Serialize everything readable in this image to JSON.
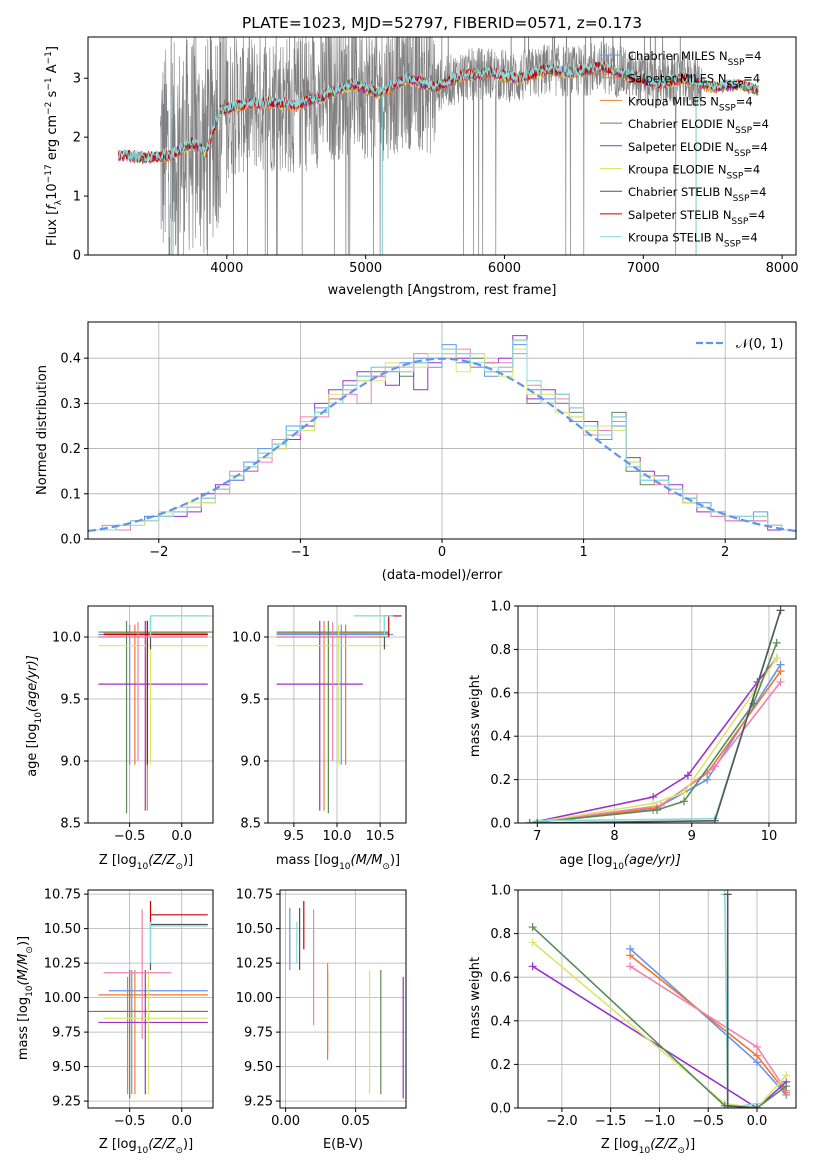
{
  "colors": {
    "s0": "#6495ed",
    "s1": "#ee7733",
    "s2": "#f08030",
    "s3": "#5a8a5a",
    "s4": "#9932cc",
    "s5": "#d8e86a",
    "s6": "#555555",
    "s7": "#cc0000",
    "s8": "#88dddd",
    "s9": "#f080b0",
    "grid": "#b0b0b0",
    "gray_spectrum": "#808080",
    "model": "#77cccc",
    "normal_curve": "#6495ed"
  },
  "chart_data": [
    {
      "id": "spectrum",
      "type": "line",
      "title": "PLATE=1023, MJD=52797, FIBERID=0571, z=0.173",
      "xlabel": "wavelength [Angstrom, rest frame]",
      "ylabel_main": "Flux [",
      "ylabel_sub": "f",
      "ylabel_tail": "10",
      "ylabel_exp": "−17",
      "ylabel_units": " erg cm",
      "xlim": [
        3000,
        8100
      ],
      "ylim": [
        0,
        3.7
      ],
      "xticks": [
        "4000",
        "5000",
        "6000",
        "7000",
        "8000"
      ],
      "yticks": [
        "0",
        "1",
        "2",
        "3"
      ],
      "grid": false,
      "legend_position": "upper-right",
      "legend": [
        {
          "name": "Chabrier MILES",
          "sub": "SSP",
          "tail": "=4"
        },
        {
          "name": "Salpeter MILES",
          "sub": "SSP",
          "tail": "=4"
        },
        {
          "name": "Kroupa MILES",
          "sub": "SSP",
          "tail": "=4"
        },
        {
          "name": "Chabrier ELODIE",
          "sub": "SSP",
          "tail": "=4"
        },
        {
          "name": "Salpeter ELODIE",
          "sub": "SSP",
          "tail": "=4"
        },
        {
          "name": "Kroupa ELODIE",
          "sub": "SSP",
          "tail": "=4"
        },
        {
          "name": "Chabrier STELIB",
          "sub": "SSP",
          "tail": "=4"
        },
        {
          "name": "Salpeter STELIB",
          "sub": "SSP",
          "tail": "=4"
        },
        {
          "name": "Kroupa STELIB",
          "sub": "SSP",
          "tail": "=4"
        }
      ],
      "model_continuum": {
        "x": [
          3220,
          3400,
          3600,
          3750,
          3850,
          3950,
          4100,
          4300,
          4500,
          4700,
          4900,
          5100,
          5300,
          5500,
          5700,
          5900,
          6100,
          6300,
          6500,
          6700,
          6900,
          7100,
          7300,
          7500,
          7700,
          7830
        ],
        "y": [
          1.7,
          1.65,
          1.7,
          1.9,
          1.75,
          2.45,
          2.55,
          2.6,
          2.55,
          2.7,
          2.9,
          2.75,
          3.0,
          2.85,
          3.05,
          3.1,
          3.0,
          3.15,
          3.1,
          3.2,
          3.05,
          2.9,
          3.0,
          2.85,
          2.9,
          2.8
        ]
      }
    },
    {
      "id": "residuals",
      "type": "step",
      "xlabel": "(data-model)/error",
      "ylabel": "Normed distribution",
      "xlim": [
        -2.5,
        2.5
      ],
      "ylim": [
        0,
        0.48
      ],
      "xticks": [
        "−2",
        "−1",
        "0",
        "1",
        "2"
      ],
      "yticks": [
        "0.0",
        "0.1",
        "0.2",
        "0.3",
        "0.4"
      ],
      "grid": true,
      "legend_position": "upper-right",
      "legend_label": "𝒩(0, 1)",
      "bin_edges": [
        -2.5,
        -2.4,
        -2.3,
        -2.2,
        -2.1,
        -2.0,
        -1.9,
        -1.8,
        -1.7,
        -1.6,
        -1.5,
        -1.4,
        -1.3,
        -1.2,
        -1.1,
        -1.0,
        -0.9,
        -0.8,
        -0.7,
        -0.6,
        -0.5,
        -0.4,
        -0.3,
        -0.2,
        -0.1,
        0.0,
        0.1,
        0.2,
        0.3,
        0.4,
        0.5,
        0.6,
        0.7,
        0.8,
        0.9,
        1.0,
        1.1,
        1.2,
        1.3,
        1.4,
        1.5,
        1.6,
        1.7,
        1.8,
        1.9,
        2.0,
        2.1,
        2.2,
        2.3,
        2.4,
        2.5
      ],
      "series": [
        {
          "color_key": "s3",
          "values": [
            0.02,
            0.02,
            0.03,
            0.04,
            0.04,
            0.05,
            0.06,
            0.07,
            0.09,
            0.11,
            0.14,
            0.16,
            0.19,
            0.21,
            0.24,
            0.26,
            0.28,
            0.31,
            0.33,
            0.36,
            0.37,
            0.38,
            0.36,
            0.39,
            0.4,
            0.42,
            0.41,
            0.4,
            0.37,
            0.38,
            0.44,
            0.3,
            0.3,
            0.32,
            0.28,
            0.25,
            0.23,
            0.28,
            0.15,
            0.12,
            0.13,
            0.11,
            0.09,
            0.07,
            0.06,
            0.05,
            0.04,
            0.05,
            0.03,
            0.02
          ]
        },
        {
          "color_key": "s4",
          "values": [
            0.02,
            0.02,
            0.02,
            0.04,
            0.05,
            0.05,
            0.05,
            0.06,
            0.1,
            0.12,
            0.13,
            0.15,
            0.18,
            0.2,
            0.22,
            0.25,
            0.3,
            0.33,
            0.35,
            0.37,
            0.36,
            0.34,
            0.38,
            0.33,
            0.39,
            0.41,
            0.4,
            0.38,
            0.39,
            0.4,
            0.45,
            0.31,
            0.33,
            0.3,
            0.29,
            0.26,
            0.25,
            0.27,
            0.18,
            0.15,
            0.14,
            0.12,
            0.08,
            0.06,
            0.06,
            0.04,
            0.05,
            0.04,
            0.02,
            0.02
          ]
        },
        {
          "color_key": "s0",
          "values": [
            0.02,
            0.02,
            0.03,
            0.03,
            0.05,
            0.06,
            0.06,
            0.07,
            0.08,
            0.11,
            0.13,
            0.17,
            0.2,
            0.21,
            0.25,
            0.24,
            0.29,
            0.3,
            0.34,
            0.35,
            0.38,
            0.37,
            0.39,
            0.4,
            0.38,
            0.43,
            0.39,
            0.41,
            0.36,
            0.37,
            0.43,
            0.33,
            0.31,
            0.3,
            0.26,
            0.25,
            0.22,
            0.25,
            0.17,
            0.13,
            0.14,
            0.1,
            0.09,
            0.08,
            0.05,
            0.05,
            0.04,
            0.06,
            0.03,
            0.02
          ]
        },
        {
          "color_key": "s9",
          "values": [
            0.02,
            0.03,
            0.02,
            0.04,
            0.04,
            0.05,
            0.07,
            0.07,
            0.09,
            0.1,
            0.15,
            0.15,
            0.17,
            0.22,
            0.23,
            0.27,
            0.27,
            0.31,
            0.32,
            0.3,
            0.36,
            0.38,
            0.37,
            0.41,
            0.4,
            0.4,
            0.42,
            0.38,
            0.39,
            0.39,
            0.41,
            0.34,
            0.3,
            0.31,
            0.27,
            0.23,
            0.24,
            0.26,
            0.16,
            0.14,
            0.12,
            0.1,
            0.1,
            0.07,
            0.05,
            0.04,
            0.05,
            0.04,
            0.03,
            0.02
          ]
        },
        {
          "color_key": "s5",
          "values": [
            0.02,
            0.02,
            0.03,
            0.03,
            0.04,
            0.06,
            0.07,
            0.08,
            0.08,
            0.11,
            0.14,
            0.16,
            0.18,
            0.2,
            0.24,
            0.24,
            0.28,
            0.32,
            0.33,
            0.35,
            0.35,
            0.39,
            0.38,
            0.38,
            0.41,
            0.41,
            0.37,
            0.41,
            0.38,
            0.36,
            0.42,
            0.32,
            0.32,
            0.28,
            0.27,
            0.24,
            0.25,
            0.24,
            0.17,
            0.14,
            0.13,
            0.11,
            0.08,
            0.07,
            0.06,
            0.05,
            0.05,
            0.05,
            0.03,
            0.02
          ]
        },
        {
          "color_key": "s8",
          "values": [
            0.02,
            0.02,
            0.03,
            0.04,
            0.04,
            0.05,
            0.06,
            0.07,
            0.09,
            0.11,
            0.14,
            0.16,
            0.19,
            0.21,
            0.24,
            0.26,
            0.28,
            0.3,
            0.33,
            0.36,
            0.38,
            0.38,
            0.37,
            0.39,
            0.4,
            0.42,
            0.41,
            0.39,
            0.37,
            0.38,
            0.44,
            0.35,
            0.3,
            0.32,
            0.29,
            0.25,
            0.23,
            0.27,
            0.16,
            0.13,
            0.13,
            0.11,
            0.09,
            0.07,
            0.06,
            0.05,
            0.05,
            0.05,
            0.03,
            0.02
          ]
        }
      ]
    },
    {
      "id": "age_vs_Z",
      "type": "errorbar",
      "xlabel": "Z [log",
      "xlabel_sub": "10",
      "xlabel_tail": "(Z/Z",
      "xlabel_end": ")]",
      "ylabel": "age  [log",
      "ylabel_sub": "10",
      "ylabel_tail": "(age/yr)]",
      "xlim": [
        -0.9,
        0.3
      ],
      "ylim": [
        8.5,
        10.25
      ],
      "xticks": [
        "−0.5",
        "0.0"
      ],
      "yticks": [
        "8.5",
        "9.0",
        "9.5",
        "10.0"
      ],
      "grid": true
    },
    {
      "id": "age_vs_mass",
      "type": "errorbar",
      "xlabel": "mass [log",
      "xlabel_sub": "10",
      "xlabel_tail": "(M/M",
      "xlabel_end": ")]",
      "xlim": [
        9.2,
        10.8
      ],
      "ylim": [
        8.5,
        10.25
      ],
      "xticks": [
        "9.5",
        "10.0",
        "10.5"
      ],
      "yticks": [
        "8.5",
        "9.0",
        "9.5",
        "10.0"
      ],
      "grid": true
    },
    {
      "id": "massweight_vs_age",
      "type": "line",
      "xlabel": "age  [log",
      "xlabel_sub": "10",
      "xlabel_tail": "(age/yr)]",
      "ylabel": "mass weight",
      "xlim": [
        6.75,
        10.35
      ],
      "ylim": [
        0,
        1.0
      ],
      "xticks": [
        "7",
        "8",
        "9",
        "10"
      ],
      "yticks": [
        "0.0",
        "0.2",
        "0.4",
        "0.6",
        "0.8",
        "1.0"
      ],
      "grid": true,
      "series": [
        {
          "color_key": "s0",
          "x": [
            6.9,
            8.5,
            9.2,
            10.15
          ],
          "y": [
            0.0,
            0.06,
            0.2,
            0.73
          ]
        },
        {
          "color_key": "s1",
          "x": [
            6.9,
            8.55,
            9.2,
            10.15
          ],
          "y": [
            0.0,
            0.07,
            0.23,
            0.7
          ]
        },
        {
          "color_key": "s9",
          "x": [
            6.9,
            8.6,
            9.3,
            10.15
          ],
          "y": [
            0.0,
            0.08,
            0.26,
            0.65
          ]
        },
        {
          "color_key": "s4",
          "x": [
            6.9,
            8.5,
            8.95,
            9.85,
            10.1
          ],
          "y": [
            0.0,
            0.12,
            0.22,
            0.65,
            0.76
          ]
        },
        {
          "color_key": "s5",
          "x": [
            6.9,
            8.5,
            8.9,
            9.8,
            10.1
          ],
          "y": [
            0.0,
            0.09,
            0.14,
            0.6,
            0.76
          ]
        },
        {
          "color_key": "s3",
          "x": [
            6.9,
            8.55,
            8.9,
            9.8,
            10.1
          ],
          "y": [
            0.0,
            0.06,
            0.1,
            0.55,
            0.83
          ]
        },
        {
          "color_key": "s8",
          "x": [
            7.0,
            9.3,
            10.15
          ],
          "y": [
            0.01,
            0.02,
            0.98
          ]
        },
        {
          "color_key": "s6",
          "x": [
            7.0,
            9.3,
            10.15
          ],
          "y": [
            0.0,
            0.01,
            0.98
          ]
        }
      ]
    },
    {
      "id": "mass_vs_Z",
      "type": "errorbar",
      "xlabel": "Z [log",
      "xlabel_sub": "10",
      "xlabel_tail": "(Z/Z",
      "xlabel_end": ")]",
      "ylabel": "mass [log",
      "ylabel_sub": "10",
      "ylabel_tail": "(M/M",
      "ylabel_end": ")]",
      "xlim": [
        -0.9,
        0.3
      ],
      "ylim": [
        9.2,
        10.78
      ],
      "xticks": [
        "−0.5",
        "0.0"
      ],
      "yticks": [
        "9.25",
        "9.50",
        "9.75",
        "10.00",
        "10.25",
        "10.50",
        "10.75"
      ],
      "grid": true
    },
    {
      "id": "mass_vs_EBV",
      "type": "errorbar",
      "xlabel": "E(B-V)",
      "xlim": [
        -0.004,
        0.086
      ],
      "ylim": [
        9.2,
        10.78
      ],
      "xticks": [
        "0.00",
        "0.05"
      ],
      "yticks": [
        "9.25",
        "9.50",
        "9.75",
        "10.00",
        "10.25",
        "10.50",
        "10.75"
      ],
      "grid": true
    },
    {
      "id": "massweight_vs_Z",
      "type": "line",
      "xlabel": "Z [log",
      "xlabel_sub": "10",
      "xlabel_tail": "(Z/Z",
      "xlabel_end": ")]",
      "ylabel": "mass weight",
      "xlim": [
        -2.45,
        0.4
      ],
      "ylim": [
        0,
        1.0
      ],
      "xticks": [
        "−2.0",
        "−1.5",
        "−1.0",
        "−0.5",
        "0.0"
      ],
      "yticks": [
        "0.0",
        "0.2",
        "0.4",
        "0.6",
        "0.8",
        "1.0"
      ],
      "grid": true,
      "series": [
        {
          "color_key": "s0",
          "x": [
            -1.3,
            0.0,
            0.3
          ],
          "y": [
            0.73,
            0.21,
            0.06
          ]
        },
        {
          "color_key": "s1",
          "x": [
            -1.3,
            0.0,
            0.3
          ],
          "y": [
            0.7,
            0.24,
            0.07
          ]
        },
        {
          "color_key": "s9",
          "x": [
            -1.3,
            0.0,
            0.3
          ],
          "y": [
            0.65,
            0.28,
            0.08
          ]
        },
        {
          "color_key": "s4",
          "x": [
            -2.3,
            0.0,
            0.3
          ],
          "y": [
            0.65,
            0.0,
            0.12
          ]
        },
        {
          "color_key": "s5",
          "x": [
            -2.3,
            -0.33,
            0.0,
            0.3
          ],
          "y": [
            0.76,
            0.02,
            0.0,
            0.15
          ]
        },
        {
          "color_key": "s3",
          "x": [
            -2.3,
            -0.33,
            0.0,
            0.3
          ],
          "y": [
            0.83,
            0.01,
            0.0,
            0.1
          ]
        },
        {
          "color_key": "s8",
          "x": [
            -0.33,
            -0.3,
            0.0
          ],
          "y": [
            0.98,
            0.0,
            0.02
          ]
        },
        {
          "color_key": "s6",
          "x": [
            -0.3,
            -0.3,
            0.0
          ],
          "y": [
            0.98,
            0.01,
            0.0
          ]
        }
      ]
    }
  ]
}
